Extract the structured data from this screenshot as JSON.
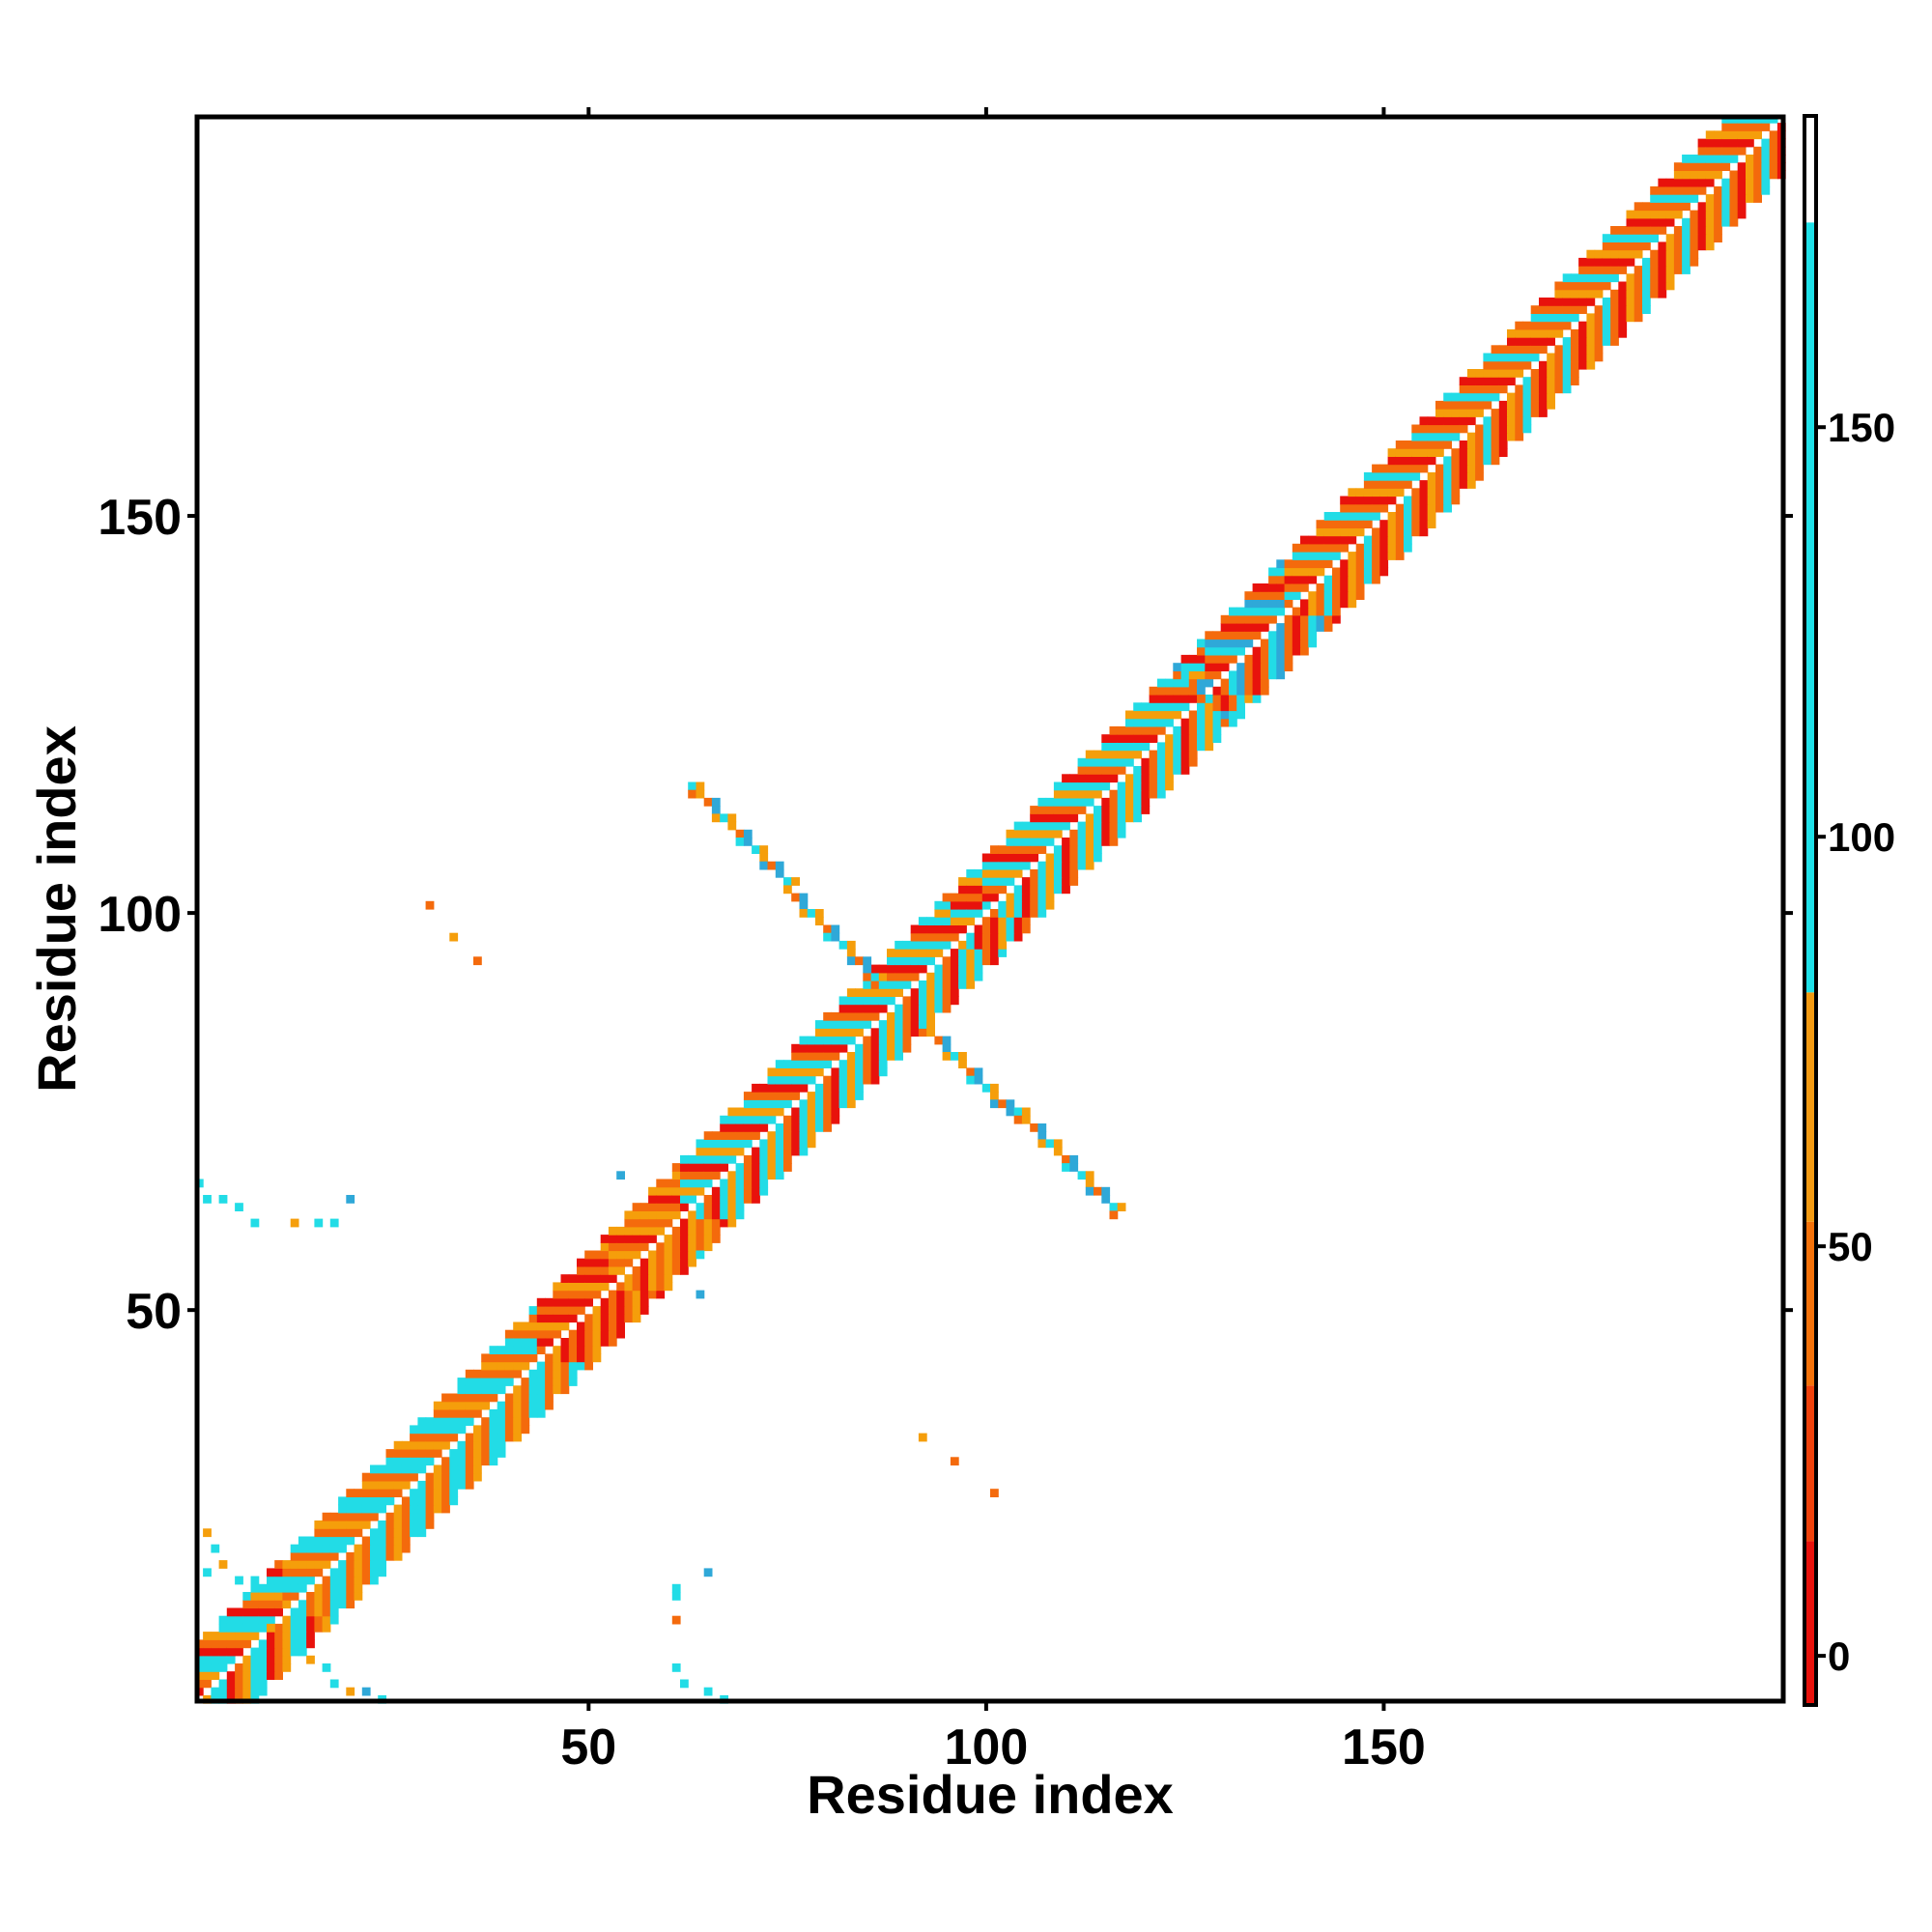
{
  "chart_data": {
    "type": "heatmap",
    "xlabel": "Residue index",
    "ylabel": "Residue index",
    "xlim": [
      1,
      200
    ],
    "ylim": [
      1,
      200
    ],
    "x_ticks": [
      50,
      100,
      150
    ],
    "y_ticks": [
      50,
      100,
      150
    ],
    "grid": false,
    "legend": "colorbar-right",
    "colorbar": {
      "range": [
        -6,
        188
      ],
      "ticks": [
        0,
        50,
        100,
        150
      ],
      "bands": [
        {
          "from": -6,
          "to": 14,
          "color": "#e8120c"
        },
        {
          "from": 14,
          "to": 33,
          "color": "#f0420c"
        },
        {
          "from": 33,
          "to": 53,
          "color": "#f4720a"
        },
        {
          "from": 53,
          "to": 81,
          "color": "#f29a12"
        },
        {
          "from": 81,
          "to": 175,
          "color": "#1ee0e8"
        },
        {
          "from": 175,
          "to": 188,
          "color": "#ffffff"
        }
      ]
    },
    "palette": {
      "red": "#e8120c",
      "orange": "#f46a0c",
      "amber": "#f59e0b",
      "cyan": "#22dce6",
      "blue": "#2fa8d8",
      "white": "#ffffff"
    },
    "main_diagonal": {
      "from": 1,
      "to": 200,
      "half_width": 7
    },
    "diagonal_segments": [
      {
        "from": 1,
        "to": 12,
        "colors": [
          "cyan",
          "red",
          "orange",
          "amber",
          "cyan"
        ]
      },
      {
        "from": 12,
        "to": 44,
        "colors": [
          "cyan",
          "orange",
          "amber",
          "orange",
          "cyan"
        ]
      },
      {
        "from": 44,
        "to": 53,
        "colors": [
          "red",
          "orange",
          "amber",
          "red",
          "orange"
        ]
      },
      {
        "from": 53,
        "to": 62,
        "colors": [
          "orange",
          "amber",
          "orange",
          "red",
          "amber"
        ]
      },
      {
        "from": 62,
        "to": 96,
        "colors": [
          "cyan",
          "orange",
          "red",
          "cyan",
          "amber"
        ]
      },
      {
        "from": 96,
        "to": 100,
        "colors": [
          "red",
          "orange",
          "red",
          "amber",
          "cyan"
        ]
      },
      {
        "from": 100,
        "to": 128,
        "colors": [
          "cyan",
          "red",
          "orange",
          "cyan",
          "amber"
        ]
      },
      {
        "from": 128,
        "to": 138,
        "colors": [
          "red",
          "orange",
          "cyan",
          "blue",
          "orange"
        ]
      },
      {
        "from": 138,
        "to": 200,
        "colors": [
          "orange",
          "red",
          "amber",
          "orange",
          "cyan"
        ]
      }
    ],
    "anti_diagonal_bands": [
      {
        "from": [
          63,
          116
        ],
        "to": [
          86,
          92
        ],
        "colors": [
          "cyan",
          "amber",
          "orange",
          "blue"
        ]
      },
      {
        "from": [
          92,
          86
        ],
        "to": [
          116,
          63
        ],
        "colors": [
          "cyan",
          "amber",
          "orange",
          "blue"
        ]
      },
      {
        "from": [
          124,
          131
        ],
        "to": [
          131,
          124
        ],
        "colors": [
          "blue",
          "cyan",
          "orange"
        ]
      }
    ],
    "scattered_contacts": [
      {
        "x": 30,
        "y": 101,
        "c": "orange"
      },
      {
        "x": 33,
        "y": 97,
        "c": "amber"
      },
      {
        "x": 36,
        "y": 94,
        "c": "orange"
      },
      {
        "x": 92,
        "y": 34,
        "c": "amber"
      },
      {
        "x": 96,
        "y": 31,
        "c": "orange"
      },
      {
        "x": 101,
        "y": 27,
        "c": "orange"
      },
      {
        "x": 1,
        "y": 66,
        "c": "cyan"
      },
      {
        "x": 2,
        "y": 64,
        "c": "cyan"
      },
      {
        "x": 4,
        "y": 64,
        "c": "cyan"
      },
      {
        "x": 6,
        "y": 63,
        "c": "cyan"
      },
      {
        "x": 8,
        "y": 61,
        "c": "cyan"
      },
      {
        "x": 13,
        "y": 61,
        "c": "amber"
      },
      {
        "x": 16,
        "y": 61,
        "c": "cyan"
      },
      {
        "x": 18,
        "y": 61,
        "c": "cyan"
      },
      {
        "x": 20,
        "y": 64,
        "c": "blue"
      },
      {
        "x": 54,
        "y": 67,
        "c": "blue"
      },
      {
        "x": 64,
        "y": 57,
        "c": "cyan"
      },
      {
        "x": 64,
        "y": 52,
        "c": "blue"
      },
      {
        "x": 65,
        "y": 17,
        "c": "blue"
      },
      {
        "x": 61,
        "y": 15,
        "c": "cyan"
      },
      {
        "x": 61,
        "y": 14,
        "c": "cyan"
      },
      {
        "x": 61,
        "y": 11,
        "c": "orange"
      },
      {
        "x": 61,
        "y": 5,
        "c": "cyan"
      },
      {
        "x": 62,
        "y": 3,
        "c": "cyan"
      },
      {
        "x": 65,
        "y": 2,
        "c": "cyan"
      },
      {
        "x": 67,
        "y": 1,
        "c": "cyan"
      },
      {
        "x": 2,
        "y": 22,
        "c": "amber"
      },
      {
        "x": 3,
        "y": 20,
        "c": "cyan"
      },
      {
        "x": 4,
        "y": 18,
        "c": "amber"
      },
      {
        "x": 6,
        "y": 16,
        "c": "cyan"
      },
      {
        "x": 8,
        "y": 16,
        "c": "cyan"
      },
      {
        "x": 7,
        "y": 14,
        "c": "cyan"
      },
      {
        "x": 2,
        "y": 17,
        "c": "cyan"
      },
      {
        "x": 10,
        "y": 10,
        "c": "amber"
      },
      {
        "x": 15,
        "y": 6,
        "c": "amber"
      },
      {
        "x": 17,
        "y": 5,
        "c": "cyan"
      },
      {
        "x": 18,
        "y": 3,
        "c": "cyan"
      },
      {
        "x": 20,
        "y": 2,
        "c": "amber"
      },
      {
        "x": 22,
        "y": 2,
        "c": "blue"
      },
      {
        "x": 24,
        "y": 1,
        "c": "cyan"
      }
    ]
  }
}
